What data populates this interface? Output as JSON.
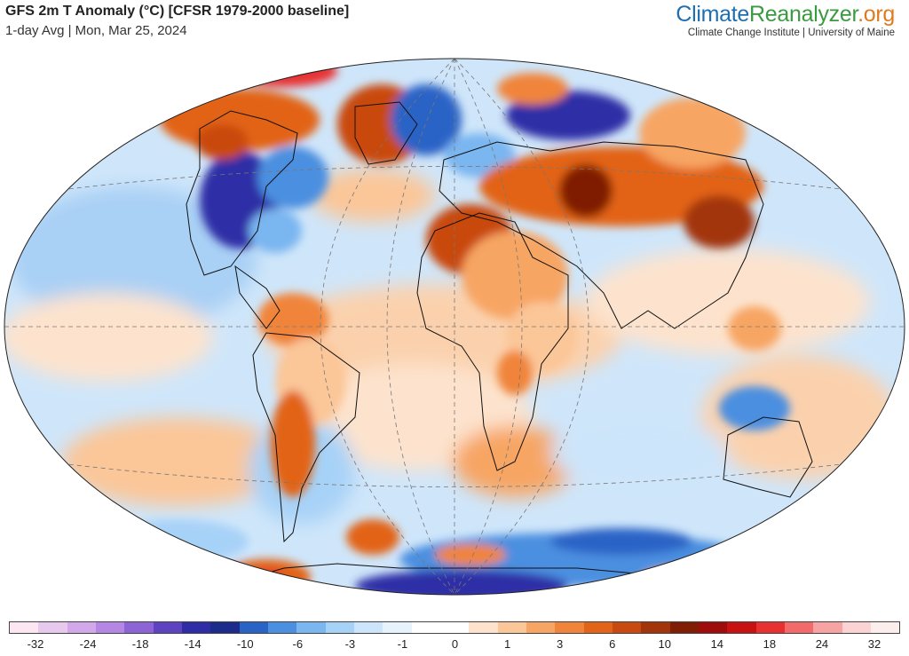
{
  "header": {
    "title": "GFS 2m T Anomaly (°C) [CFSR 1979-2000 baseline]",
    "subtitle": "1-day Avg | Mon, Mar 25, 2024"
  },
  "brand": {
    "name_part1": "Climate",
    "name_part2": "Reanalyzer",
    "name_part3": ".org",
    "affiliation": "Climate Change Institute | University of Maine"
  },
  "legend": {
    "colors": [
      "#fbe6f1",
      "#e8c9ee",
      "#d2a8ea",
      "#b387e3",
      "#8c64d6",
      "#5d42c2",
      "#2f2da6",
      "#1d2c8a",
      "#2a63c6",
      "#4b8fe0",
      "#7ab6f0",
      "#a7d2f7",
      "#cde5fa",
      "#e6f2fc",
      "#ffffff",
      "#ffffff",
      "#fde3cd",
      "#fbc698",
      "#f7a564",
      "#f0843a",
      "#e26419",
      "#c94a10",
      "#a3350a",
      "#7f1d05",
      "#9e0c0c",
      "#c81212",
      "#e83030",
      "#f26a6a",
      "#f7a3a3",
      "#fbd3d3",
      "#fdeeee"
    ],
    "tick_labels": [
      "-32",
      "-24",
      "-18",
      "-14",
      "-10",
      "-6",
      "-3",
      "-1",
      "0",
      "1",
      "3",
      "6",
      "10",
      "14",
      "18",
      "24",
      "32"
    ]
  }
}
